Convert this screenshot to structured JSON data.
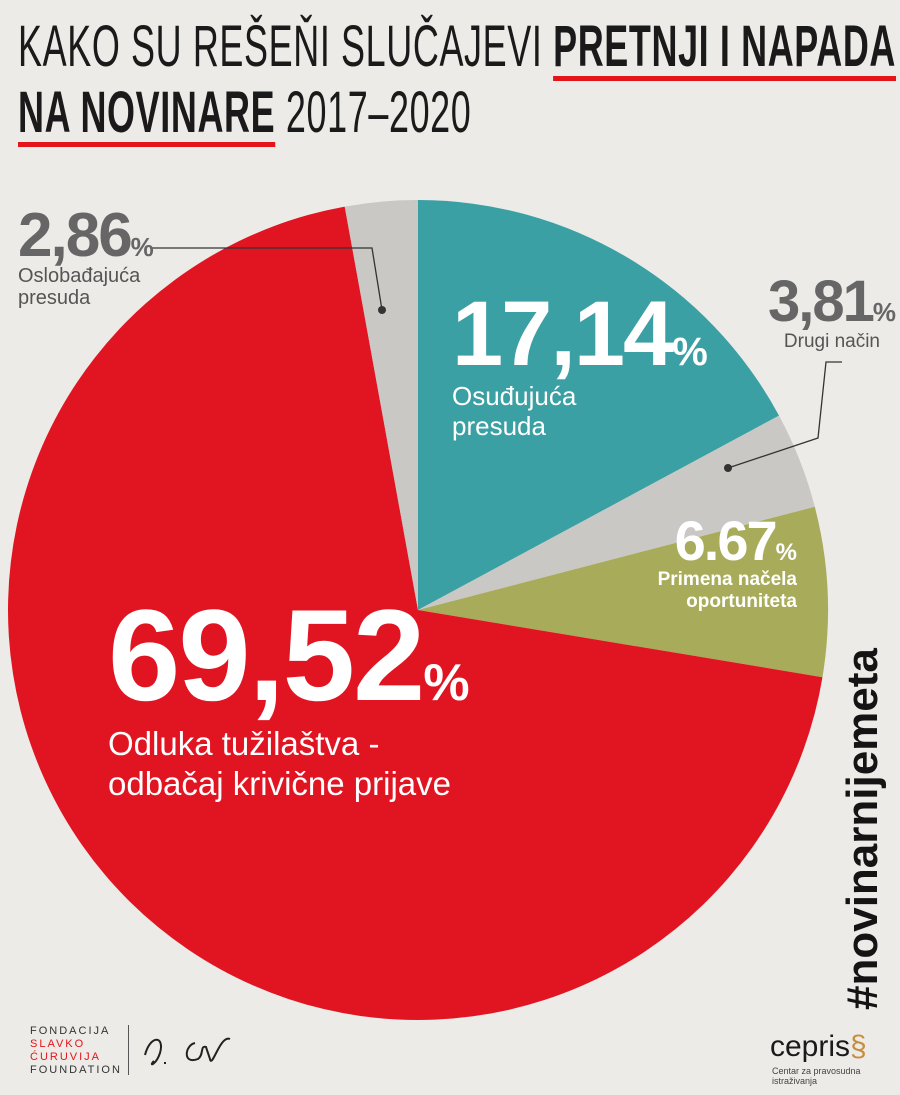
{
  "title": {
    "line1_normal": "KAKO SU REŠEŇI SLUČAJEVI",
    "line1_bold": "PRETNJI I NAPADA",
    "line2_bold": "NA NOVINARE",
    "line2_normal": "2017–2020"
  },
  "chart_data": {
    "type": "pie",
    "slices": [
      {
        "label": "Osuđujuća presuda",
        "value": 17.14,
        "display": "17,14",
        "color": "#3aa0a4"
      },
      {
        "label": "Drugi način",
        "value": 3.81,
        "display": "3,81",
        "color": "#c9c8c4"
      },
      {
        "label": "Primena načela oportuniteta",
        "value": 6.67,
        "display": "6.67",
        "color": "#a8ac5a"
      },
      {
        "label": "Odluka tužilaštva - odbačaj krivične prijave",
        "value": 69.52,
        "display": "69,52",
        "color": "#e11522"
      },
      {
        "label": "Oslobađajuća presuda",
        "value": 2.86,
        "display": "2,86",
        "color": "#c9c8c4"
      }
    ],
    "percent_sign": "%"
  },
  "labels": {
    "osudjujuca": {
      "l1": "Osuđujuća",
      "l2": "presuda"
    },
    "drugi": {
      "l1": "Drugi način"
    },
    "primena": {
      "l1": "Primena načela",
      "l2": "oportuniteta"
    },
    "odluka": {
      "l1": "Odluka tužilaštva -",
      "l2": "odbačaj krivične prijave"
    },
    "oslobadjajuca": {
      "l1": "Oslobađajuća",
      "l2": "presuda"
    }
  },
  "hashtag": "#novinarnijemeta",
  "footer": {
    "foundation_lines": [
      "FONDACIJA",
      "SLAVKO",
      "ĆURUVIJA",
      "FOUNDATION"
    ],
    "cepris_logo": "cepris",
    "cepris_sub": "Centar za pravosudna istraživanja"
  }
}
